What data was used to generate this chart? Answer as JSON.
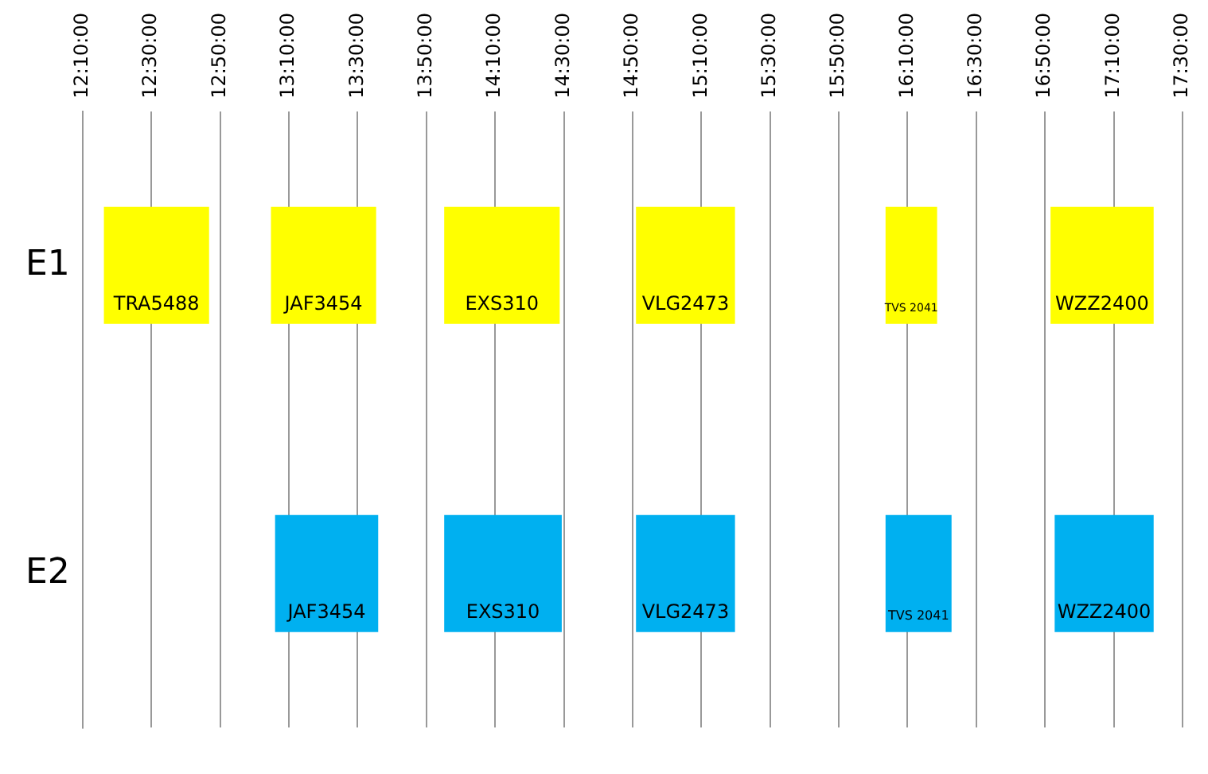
{
  "chart_data": {
    "type": "bar",
    "orientation": "horizontal",
    "categories": [
      "E1",
      "E2"
    ],
    "series": [
      {
        "name": "TRA5488",
        "colors": [
          "#ffff00",
          "#00b0f0"
        ],
        "base": [
          12.27,
          null
        ],
        "values": [
          0.51,
          null
        ]
      },
      {
        "name": "JAF3454",
        "colors": [
          "#ffff00",
          "#00b0f0"
        ],
        "base": [
          13.08,
          13.1
        ],
        "values": [
          0.51,
          0.5
        ]
      },
      {
        "name": "EXS310",
        "colors": [
          "#ffff00",
          "#00b0f0"
        ],
        "base": [
          13.92,
          13.92
        ],
        "values": [
          0.56,
          0.57
        ]
      },
      {
        "name": "VLG2473",
        "colors": [
          "#ffff00",
          "#00b0f0"
        ],
        "base": [
          14.85,
          14.85
        ],
        "values": [
          0.48,
          0.48
        ]
      },
      {
        "name": "TVS 2041",
        "colors": [
          "#ffff00",
          "#00b0f0"
        ],
        "base": [
          16.06,
          16.06
        ],
        "values": [
          0.25,
          0.32
        ]
      },
      {
        "name": "WZZ2400",
        "colors": [
          "#ffff00",
          "#00b0f0"
        ],
        "base": [
          16.86,
          16.88
        ],
        "values": [
          0.5,
          0.48
        ]
      }
    ],
    "xlim": [
      12.1667,
      17.5
    ],
    "xticks": [
      {
        "value": 12.1667,
        "label": "12:10:00"
      },
      {
        "value": 12.5,
        "label": "12:30:00"
      },
      {
        "value": 12.8333,
        "label": "12:50:00"
      },
      {
        "value": 13.1667,
        "label": "13:10:00"
      },
      {
        "value": 13.5,
        "label": "13:30:00"
      },
      {
        "value": 13.8333,
        "label": "13:50:00"
      },
      {
        "value": 14.1667,
        "label": "14:10:00"
      },
      {
        "value": 14.5,
        "label": "14:30:00"
      },
      {
        "value": 14.8333,
        "label": "14:50:00"
      },
      {
        "value": 15.1667,
        "label": "15:10:00"
      },
      {
        "value": 15.5,
        "label": "15:30:00"
      },
      {
        "value": 15.8333,
        "label": "15:50:00"
      },
      {
        "value": 16.1667,
        "label": "16:10:00"
      },
      {
        "value": 16.5,
        "label": "16:30:00"
      },
      {
        "value": 16.8333,
        "label": "16:50:00"
      },
      {
        "value": 17.1667,
        "label": "17:10:00"
      },
      {
        "value": 17.5,
        "label": "17:30:00"
      }
    ],
    "grid": "x",
    "legend": false
  }
}
